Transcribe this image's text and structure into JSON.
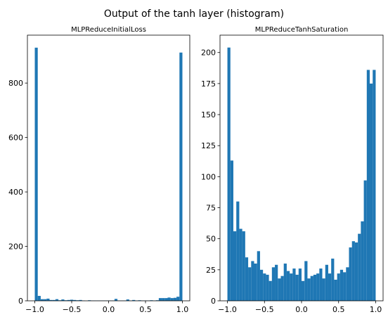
{
  "figure": {
    "title": "Output of the tanh layer (histogram)"
  },
  "chart_data": [
    {
      "type": "histogram",
      "title": "MLPReduceInitialLoss",
      "xlim": [
        -1.1,
        1.1
      ],
      "ylim": [
        0,
        976
      ],
      "xticks": [
        -1.0,
        -0.5,
        0.0,
        0.5,
        1.0
      ],
      "xtick_labels": [
        "−1.0",
        "−0.5",
        "0.0",
        "0.5",
        "1.0"
      ],
      "yticks": [
        0,
        200,
        400,
        600,
        800
      ],
      "ytick_labels": [
        "0",
        "200",
        "400",
        "600",
        "800"
      ],
      "bar_color": "#1f77b4",
      "bins": {
        "start": -1.0,
        "width": 0.04,
        "counts": [
          930,
          18,
          6,
          6,
          8,
          3,
          3,
          6,
          2,
          5,
          2,
          3,
          4,
          3,
          2,
          3,
          1,
          0,
          2,
          1,
          1,
          1,
          1,
          1,
          1,
          1,
          1,
          7,
          1,
          1,
          1,
          5,
          1,
          3,
          1,
          2,
          1,
          1,
          1,
          2,
          1,
          2,
          10,
          10,
          10,
          12,
          10,
          11,
          15,
          912
        ]
      }
    },
    {
      "type": "histogram",
      "title": "MLPReduceTanhSaturation",
      "xlim": [
        -1.1,
        1.1
      ],
      "ylim": [
        0,
        214
      ],
      "xticks": [
        -1.0,
        -0.5,
        0.0,
        0.5,
        1.0
      ],
      "xtick_labels": [
        "−1.0",
        "−0.5",
        "0.0",
        "0.5",
        "1.0"
      ],
      "yticks": [
        0,
        25,
        50,
        75,
        100,
        125,
        150,
        175,
        200
      ],
      "ytick_labels": [
        "0",
        "25",
        "50",
        "75",
        "100",
        "125",
        "150",
        "175",
        "200"
      ],
      "bar_color": "#1f77b4",
      "bins": {
        "start": -1.0,
        "width": 0.04,
        "counts": [
          204,
          113,
          56,
          80,
          58,
          56,
          35,
          27,
          32,
          30,
          40,
          25,
          22,
          21,
          16,
          27,
          29,
          18,
          20,
          30,
          24,
          22,
          26,
          21,
          26,
          16,
          32,
          18,
          20,
          21,
          22,
          26,
          18,
          29,
          22,
          34,
          17,
          22,
          25,
          23,
          27,
          43,
          48,
          47,
          54,
          64,
          97,
          186,
          175,
          186
        ]
      }
    }
  ]
}
